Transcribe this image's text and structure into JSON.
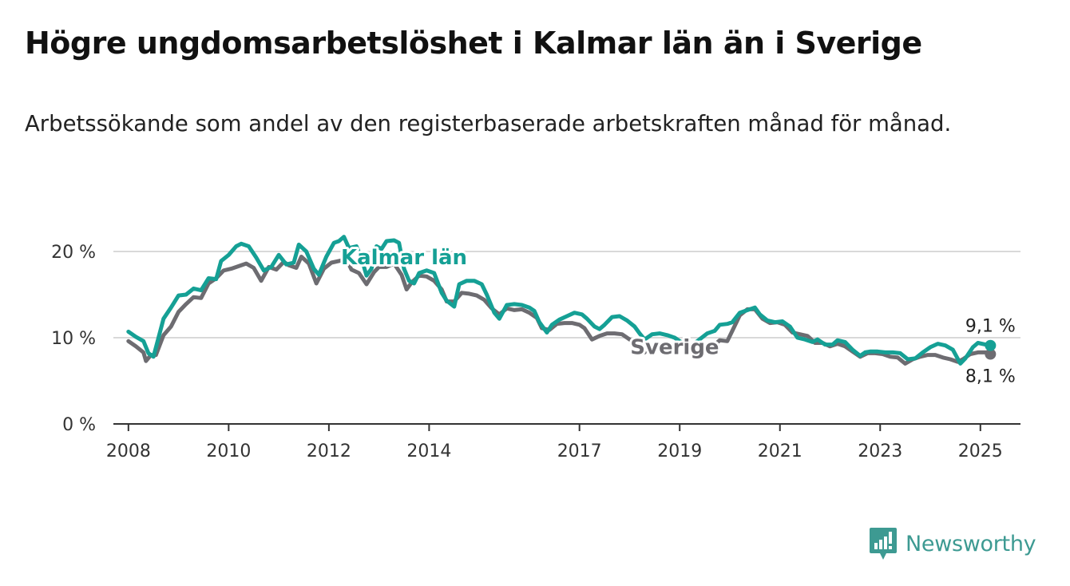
{
  "title": "Högre ungdomsarbetslöshet i Kalmar län än i Sverige",
  "subtitle": "Arbetssökande som andel av den registerbaserade arbetskraften månad för månad.",
  "brand": {
    "name": "Newsworthy",
    "icon": "bar-chart-logo-icon",
    "color": "#3d9a92"
  },
  "colors": {
    "kalmar": "#15a095",
    "sverige": "#6d6c71",
    "grid": "#d9d9d9",
    "axis": "#333333"
  },
  "chart_data": {
    "type": "line",
    "title": "Högre ungdomsarbetslöshet i Kalmar län än i Sverige",
    "subtitle": "Arbetssökande som andel av den registerbaserade arbetskraften månad för månad.",
    "xlabel": "",
    "ylabel": "",
    "xlim": [
      2007.7,
      2025.8
    ],
    "ylim": [
      0,
      20
    ],
    "x_ticks": [
      2008,
      2010,
      2012,
      2014,
      2017,
      2019,
      2021,
      2023,
      2025
    ],
    "x_tick_labels": [
      "2008",
      "2010",
      "2012",
      "2014",
      "2017",
      "2019",
      "2021",
      "2023",
      "2025"
    ],
    "y_ticks": [
      0,
      10,
      20
    ],
    "y_tick_labels": [
      "0 %",
      "10 %",
      "20 %"
    ],
    "grid": true,
    "series": [
      {
        "name": "Kalmar län",
        "color": "#15a095",
        "points": [
          [
            2008.0,
            10.7
          ],
          [
            2008.15,
            10.1
          ],
          [
            2008.3,
            9.6
          ],
          [
            2008.4,
            8.2
          ],
          [
            2008.5,
            7.8
          ],
          [
            2008.6,
            10.0
          ],
          [
            2008.7,
            12.2
          ],
          [
            2008.85,
            13.5
          ],
          [
            2009.0,
            14.9
          ],
          [
            2009.15,
            15.0
          ],
          [
            2009.3,
            15.7
          ],
          [
            2009.45,
            15.5
          ],
          [
            2009.6,
            16.9
          ],
          [
            2009.75,
            16.8
          ],
          [
            2009.85,
            18.9
          ],
          [
            2010.0,
            19.6
          ],
          [
            2010.15,
            20.6
          ],
          [
            2010.25,
            20.9
          ],
          [
            2010.4,
            20.6
          ],
          [
            2010.55,
            19.3
          ],
          [
            2010.7,
            17.8
          ],
          [
            2010.85,
            18.2
          ],
          [
            2011.0,
            19.6
          ],
          [
            2011.15,
            18.5
          ],
          [
            2011.3,
            18.7
          ],
          [
            2011.4,
            20.8
          ],
          [
            2011.55,
            20.0
          ],
          [
            2011.7,
            18.0
          ],
          [
            2011.8,
            17.3
          ],
          [
            2011.95,
            19.4
          ],
          [
            2012.1,
            21.0
          ],
          [
            2012.2,
            21.2
          ],
          [
            2012.3,
            21.7
          ],
          [
            2012.4,
            20.4
          ],
          [
            2012.55,
            20.6
          ],
          [
            2012.65,
            19.2
          ],
          [
            2012.75,
            17.2
          ],
          [
            2012.85,
            18.0
          ],
          [
            2012.95,
            20.6
          ],
          [
            2013.05,
            20.3
          ],
          [
            2013.15,
            21.2
          ],
          [
            2013.3,
            21.3
          ],
          [
            2013.4,
            21.0
          ],
          [
            2013.5,
            18.0
          ],
          [
            2013.6,
            16.6
          ],
          [
            2013.7,
            16.3
          ],
          [
            2013.8,
            17.5
          ],
          [
            2013.95,
            17.8
          ],
          [
            2014.1,
            17.5
          ],
          [
            2014.25,
            15.2
          ],
          [
            2014.35,
            14.3
          ],
          [
            2014.5,
            13.6
          ],
          [
            2014.6,
            16.2
          ],
          [
            2014.75,
            16.6
          ],
          [
            2014.9,
            16.6
          ],
          [
            2015.05,
            16.2
          ],
          [
            2015.15,
            15.0
          ],
          [
            2015.3,
            12.9
          ],
          [
            2015.4,
            12.2
          ],
          [
            2015.55,
            13.8
          ],
          [
            2015.7,
            13.9
          ],
          [
            2015.85,
            13.8
          ],
          [
            2016.0,
            13.5
          ],
          [
            2016.1,
            13.1
          ],
          [
            2016.2,
            11.8
          ],
          [
            2016.35,
            10.6
          ],
          [
            2016.45,
            11.5
          ],
          [
            2016.6,
            12.1
          ],
          [
            2016.75,
            12.5
          ],
          [
            2016.9,
            12.9
          ],
          [
            2017.05,
            12.7
          ],
          [
            2017.15,
            12.2
          ],
          [
            2017.3,
            11.3
          ],
          [
            2017.4,
            11.0
          ],
          [
            2017.5,
            11.5
          ],
          [
            2017.65,
            12.4
          ],
          [
            2017.8,
            12.5
          ],
          [
            2017.95,
            12.0
          ],
          [
            2018.1,
            11.3
          ],
          [
            2018.2,
            10.5
          ],
          [
            2018.3,
            9.8
          ],
          [
            2018.45,
            10.4
          ],
          [
            2018.6,
            10.5
          ],
          [
            2018.75,
            10.3
          ],
          [
            2018.9,
            10.0
          ],
          [
            2019.05,
            9.4
          ],
          [
            2019.2,
            8.9
          ],
          [
            2019.35,
            9.6
          ],
          [
            2019.55,
            10.5
          ],
          [
            2019.7,
            10.8
          ],
          [
            2019.8,
            11.5
          ],
          [
            2019.95,
            11.6
          ],
          [
            2020.05,
            11.8
          ],
          [
            2020.2,
            12.9
          ],
          [
            2020.4,
            13.3
          ],
          [
            2020.5,
            13.5
          ],
          [
            2020.6,
            12.7
          ],
          [
            2020.75,
            12.0
          ],
          [
            2020.9,
            11.8
          ],
          [
            2021.05,
            11.9
          ],
          [
            2021.2,
            11.3
          ],
          [
            2021.35,
            10.0
          ],
          [
            2021.5,
            9.8
          ],
          [
            2021.65,
            9.5
          ],
          [
            2021.75,
            9.8
          ],
          [
            2021.9,
            9.2
          ],
          [
            2022.05,
            9.2
          ],
          [
            2022.15,
            9.7
          ],
          [
            2022.3,
            9.5
          ],
          [
            2022.45,
            8.6
          ],
          [
            2022.6,
            7.9
          ],
          [
            2022.7,
            8.3
          ],
          [
            2022.8,
            8.4
          ],
          [
            2022.95,
            8.4
          ],
          [
            2023.1,
            8.3
          ],
          [
            2023.25,
            8.3
          ],
          [
            2023.4,
            8.2
          ],
          [
            2023.55,
            7.5
          ],
          [
            2023.7,
            7.6
          ],
          [
            2023.85,
            8.3
          ],
          [
            2024.0,
            8.9
          ],
          [
            2024.15,
            9.3
          ],
          [
            2024.3,
            9.1
          ],
          [
            2024.45,
            8.6
          ],
          [
            2024.6,
            7.0
          ],
          [
            2024.7,
            7.6
          ],
          [
            2024.85,
            8.9
          ],
          [
            2024.95,
            9.4
          ],
          [
            2025.1,
            9.2
          ],
          [
            2025.2,
            9.1
          ]
        ]
      },
      {
        "name": "Sverige",
        "color": "#6d6c71",
        "points": [
          [
            2008.0,
            9.6
          ],
          [
            2008.15,
            9.0
          ],
          [
            2008.3,
            8.3
          ],
          [
            2008.35,
            7.3
          ],
          [
            2008.45,
            8.0
          ],
          [
            2008.55,
            8.0
          ],
          [
            2008.7,
            10.3
          ],
          [
            2008.85,
            11.3
          ],
          [
            2009.0,
            13.0
          ],
          [
            2009.15,
            13.9
          ],
          [
            2009.3,
            14.7
          ],
          [
            2009.45,
            14.6
          ],
          [
            2009.6,
            16.3
          ],
          [
            2009.75,
            16.9
          ],
          [
            2009.9,
            17.8
          ],
          [
            2010.05,
            18.0
          ],
          [
            2010.2,
            18.3
          ],
          [
            2010.35,
            18.6
          ],
          [
            2010.5,
            18.1
          ],
          [
            2010.65,
            16.6
          ],
          [
            2010.8,
            18.2
          ],
          [
            2010.95,
            17.9
          ],
          [
            2011.1,
            18.8
          ],
          [
            2011.2,
            18.4
          ],
          [
            2011.35,
            18.1
          ],
          [
            2011.45,
            19.4
          ],
          [
            2011.6,
            18.6
          ],
          [
            2011.75,
            16.3
          ],
          [
            2011.9,
            18.0
          ],
          [
            2012.05,
            18.7
          ],
          [
            2012.2,
            18.9
          ],
          [
            2012.35,
            19.1
          ],
          [
            2012.45,
            17.9
          ],
          [
            2012.6,
            17.5
          ],
          [
            2012.75,
            16.2
          ],
          [
            2012.9,
            17.6
          ],
          [
            2013.0,
            18.2
          ],
          [
            2013.15,
            18.2
          ],
          [
            2013.3,
            18.6
          ],
          [
            2013.45,
            17.3
          ],
          [
            2013.55,
            15.6
          ],
          [
            2013.65,
            16.4
          ],
          [
            2013.8,
            17.2
          ],
          [
            2013.95,
            17.1
          ],
          [
            2014.1,
            16.6
          ],
          [
            2014.25,
            15.6
          ],
          [
            2014.35,
            14.2
          ],
          [
            2014.5,
            14.2
          ],
          [
            2014.65,
            15.2
          ],
          [
            2014.8,
            15.1
          ],
          [
            2014.95,
            14.9
          ],
          [
            2015.1,
            14.4
          ],
          [
            2015.25,
            13.4
          ],
          [
            2015.4,
            12.7
          ],
          [
            2015.55,
            13.4
          ],
          [
            2015.7,
            13.2
          ],
          [
            2015.85,
            13.3
          ],
          [
            2016.0,
            12.9
          ],
          [
            2016.15,
            12.3
          ],
          [
            2016.25,
            11.1
          ],
          [
            2016.4,
            10.9
          ],
          [
            2016.55,
            11.6
          ],
          [
            2016.7,
            11.7
          ],
          [
            2016.85,
            11.7
          ],
          [
            2017.0,
            11.5
          ],
          [
            2017.1,
            11.1
          ],
          [
            2017.25,
            9.8
          ],
          [
            2017.4,
            10.2
          ],
          [
            2017.55,
            10.5
          ],
          [
            2017.7,
            10.5
          ],
          [
            2017.85,
            10.4
          ],
          [
            2018.0,
            9.8
          ],
          [
            2018.15,
            9.3
          ],
          [
            2018.3,
            8.3
          ]
        ]
      },
      {
        "name": "Sverige",
        "color": "#6d6c71",
        "points": [
          [
            2019.55,
            9.1
          ],
          [
            2019.7,
            9.2
          ],
          [
            2019.8,
            9.7
          ],
          [
            2019.95,
            9.6
          ],
          [
            2020.05,
            10.8
          ],
          [
            2020.2,
            12.6
          ],
          [
            2020.35,
            13.3
          ],
          [
            2020.5,
            13.3
          ],
          [
            2020.65,
            12.2
          ],
          [
            2020.8,
            11.7
          ],
          [
            2020.95,
            11.8
          ],
          [
            2021.1,
            11.5
          ],
          [
            2021.25,
            10.6
          ],
          [
            2021.4,
            10.4
          ],
          [
            2021.55,
            10.2
          ],
          [
            2021.7,
            9.4
          ],
          [
            2021.85,
            9.4
          ],
          [
            2022.0,
            9.0
          ],
          [
            2022.15,
            9.3
          ],
          [
            2022.3,
            9.0
          ],
          [
            2022.45,
            8.4
          ],
          [
            2022.6,
            7.8
          ],
          [
            2022.75,
            8.2
          ],
          [
            2022.9,
            8.2
          ],
          [
            2023.05,
            8.1
          ],
          [
            2023.2,
            7.8
          ],
          [
            2023.35,
            7.7
          ],
          [
            2023.5,
            7.0
          ],
          [
            2023.65,
            7.5
          ],
          [
            2023.8,
            7.8
          ],
          [
            2023.95,
            8.0
          ],
          [
            2024.1,
            8.0
          ],
          [
            2024.25,
            7.7
          ],
          [
            2024.4,
            7.5
          ],
          [
            2024.55,
            7.2
          ],
          [
            2024.65,
            7.5
          ],
          [
            2024.8,
            8.1
          ],
          [
            2024.95,
            8.3
          ],
          [
            2025.1,
            8.3
          ],
          [
            2025.2,
            8.1
          ]
        ]
      }
    ],
    "annotations": [
      {
        "text": "Kalmar län",
        "kind": "series-label",
        "series": "Kalmar län",
        "x": 2013.5,
        "y": 18.5
      },
      {
        "text": "Sverige",
        "kind": "series-label",
        "series": "Sverige",
        "x": 2018.9,
        "y": 8.1
      },
      {
        "text": "9,1 %",
        "kind": "end-value",
        "series": "Kalmar län",
        "x": 2025.2,
        "y": 9.1
      },
      {
        "text": "8,1 %",
        "kind": "end-value",
        "series": "Sverige",
        "x": 2025.2,
        "y": 8.1
      }
    ]
  }
}
